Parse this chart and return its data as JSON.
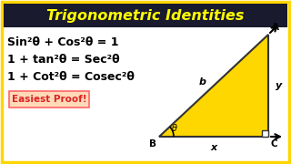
{
  "title": "Trigonometric Identities",
  "title_color": "#FFFF00",
  "title_bg": "#1a1a2e",
  "bg_color": "#FFFFFF",
  "border_color": "#FFD700",
  "eq1": "Sin²θ + Cos²θ = 1",
  "eq2": "1 + tan²θ = Sec²θ",
  "eq3": "1 + Cot²θ = Cosec²θ",
  "badge_text": "Easiest Proof!",
  "badge_bg": "#FFDAB9",
  "badge_border": "#FF6666",
  "badge_text_color": "#DD2222",
  "triangle_fill": "#FFD700",
  "triangle_border": "#333333",
  "label_A": "A",
  "label_B": "B",
  "label_C": "C",
  "label_b": "b",
  "label_y": "y",
  "label_x": "x",
  "label_theta": "θ",
  "title_fontsize": 11.5,
  "eq_fontsize": 9.0,
  "badge_fontsize": 7.5
}
